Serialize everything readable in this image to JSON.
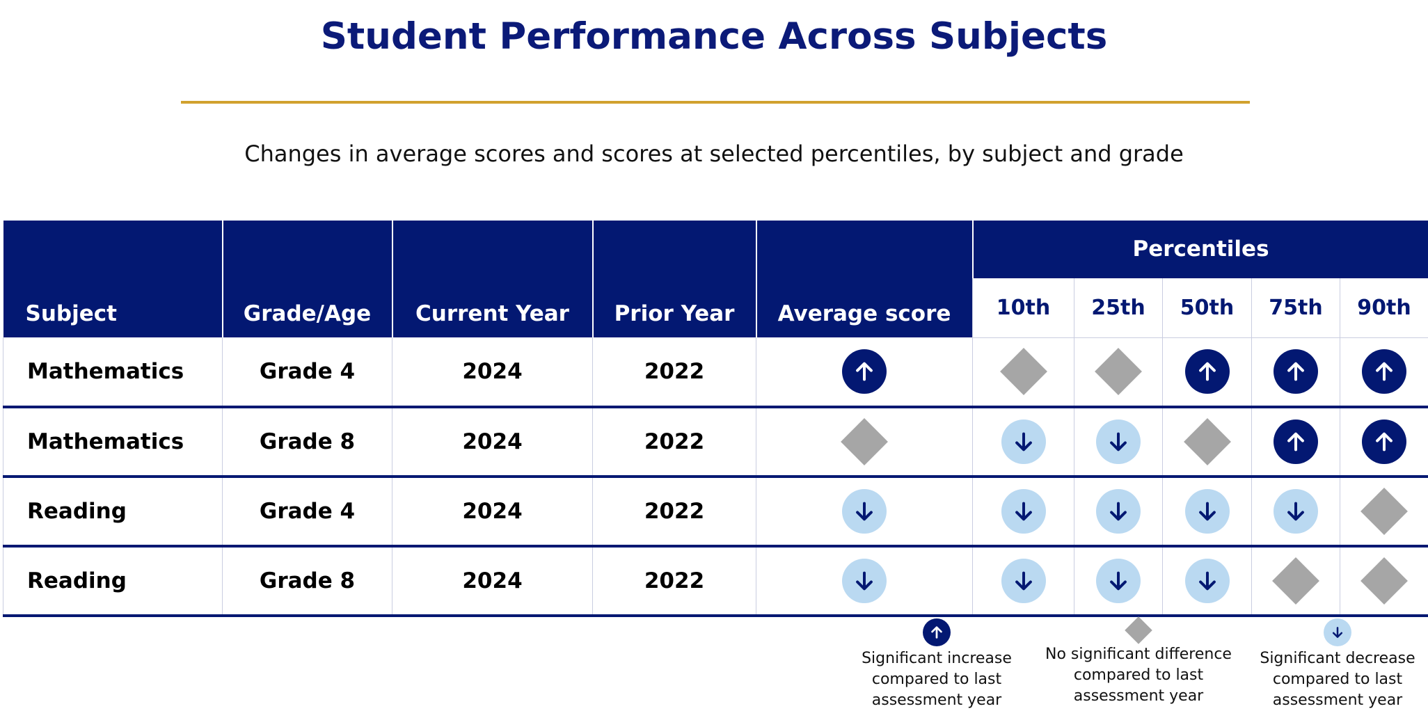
{
  "title": "Student Performance Across Subjects",
  "subtitle": "Changes in average scores and scores at selected percentiles, by subject and grade",
  "colors": {
    "header_bg": "#031872",
    "title": "#0b1a78",
    "rule": "#d1a12e",
    "increase": "#031872",
    "decrease": "#bad9f1",
    "no_difference": "#a6a6a6"
  },
  "table": {
    "headers": {
      "subject": "Subject",
      "grade": "Grade/Age",
      "current_year": "Current Year",
      "prior_year": "Prior Year",
      "average": "Average score",
      "percentiles": "Percentiles",
      "p10": "10th",
      "p25": "25th",
      "p50": "50th",
      "p75": "75th",
      "p90": "90th"
    },
    "rows": [
      {
        "subject": "Mathematics",
        "grade": "Grade 4",
        "current_year": "2024",
        "prior_year": "2022",
        "average": "increase",
        "p10": "no_difference",
        "p25": "no_difference",
        "p50": "increase",
        "p75": "increase",
        "p90": "increase"
      },
      {
        "subject": "Mathematics",
        "grade": "Grade 8",
        "current_year": "2024",
        "prior_year": "2022",
        "average": "no_difference",
        "p10": "decrease",
        "p25": "decrease",
        "p50": "no_difference",
        "p75": "increase",
        "p90": "increase"
      },
      {
        "subject": "Reading",
        "grade": "Grade 4",
        "current_year": "2024",
        "prior_year": "2022",
        "average": "decrease",
        "p10": "decrease",
        "p25": "decrease",
        "p50": "decrease",
        "p75": "decrease",
        "p90": "no_difference"
      },
      {
        "subject": "Reading",
        "grade": "Grade 8",
        "current_year": "2024",
        "prior_year": "2022",
        "average": "decrease",
        "p10": "decrease",
        "p25": "decrease",
        "p50": "decrease",
        "p75": "no_difference",
        "p90": "no_difference"
      }
    ]
  },
  "legend": {
    "increase": "Significant increase\ncompared to last\nassessment year",
    "no_difference": "No significant difference\ncompared to last\nassessment year",
    "decrease": "Significant decrease\ncompared to last\nassessment year"
  }
}
